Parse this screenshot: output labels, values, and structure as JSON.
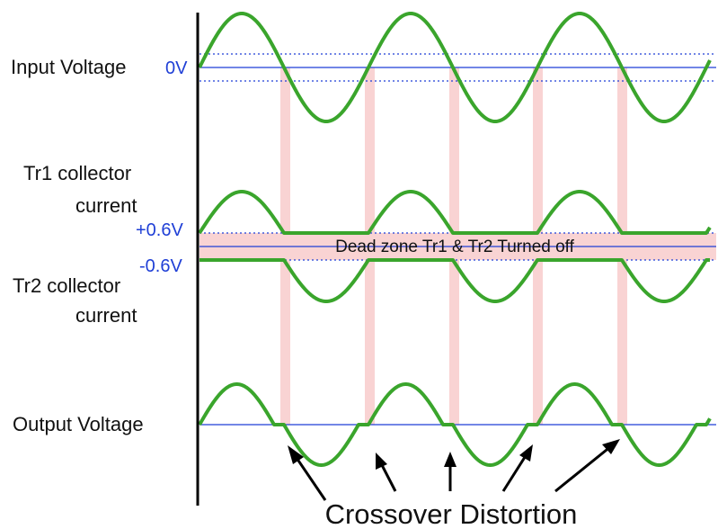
{
  "labels": {
    "input_voltage": "Input Voltage",
    "zero_volt": "0V",
    "tr1_line1": "Tr1 collector",
    "tr1_line2": "current",
    "plus_06v": "+0.6V",
    "minus_06v": "-0.6V",
    "tr2_line1": "Tr2 collector",
    "tr2_line2": "current",
    "output_voltage": "Output Voltage",
    "dead_zone": "Dead zone Tr1 & Tr2 Turned off",
    "crossover_distortion": "Crossover Distortion"
  },
  "colors": {
    "wave": "#3aa52c",
    "reference": "#1f3fd6",
    "dead_zone_fill": "#f9d3d3",
    "axis": "#000000"
  }
}
